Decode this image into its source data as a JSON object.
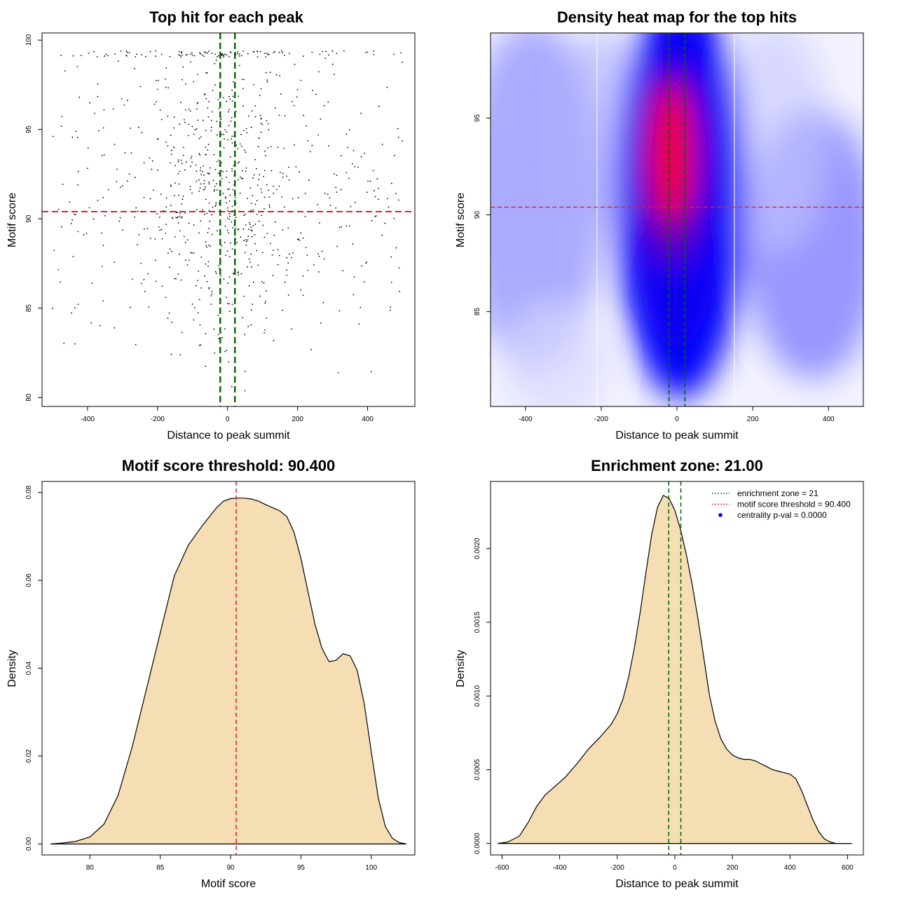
{
  "chart_data": [
    {
      "type": "scatter",
      "title": "Top hit for each peak",
      "xlabel": "Distance to peak summit",
      "ylabel": "Motif score",
      "xlim": [
        -530,
        535
      ],
      "ylim": [
        79.5,
        100.4
      ],
      "xticks": [
        -400,
        -200,
        0,
        200,
        400
      ],
      "yticks": [
        80,
        85,
        90,
        95,
        100
      ],
      "point_count": 900,
      "point_color": "#000000",
      "hlines": [
        {
          "y": 90.4,
          "color": "#dd2222",
          "style": "dashed"
        }
      ],
      "vlines": [
        {
          "x": -21,
          "color": "#006400",
          "style": "dashed"
        },
        {
          "x": 21,
          "color": "#006400",
          "style": "dashed"
        }
      ]
    },
    {
      "type": "heatmap",
      "title": "Density heat map for the top hits",
      "xlabel": "Distance to peak summit",
      "ylabel": "Motif score",
      "xlim": [
        -492,
        492
      ],
      "ylim": [
        80.1,
        99.4
      ],
      "xticks": [
        -400,
        -200,
        0,
        200,
        400
      ],
      "yticks": [
        85,
        90,
        95
      ],
      "colors": [
        "#ffffff",
        "#0000ff",
        "#ff0000"
      ],
      "hlines": [
        {
          "y": 90.4,
          "color": "#dd2222",
          "style": "dashed"
        }
      ],
      "vlines": [
        {
          "x": -21,
          "color": "#006400",
          "style": "dashed"
        },
        {
          "x": 21,
          "color": "#006400",
          "style": "dashed"
        }
      ]
    },
    {
      "type": "area",
      "title": "Motif score threshold: 90.400",
      "xlabel": "Motif score",
      "ylabel": "Density",
      "xlim": [
        76.6,
        103.1
      ],
      "ylim": [
        -0.0025,
        0.0825
      ],
      "xticks": [
        80,
        85,
        90,
        95,
        100
      ],
      "yticks": [
        0.0,
        0.02,
        0.04,
        0.06,
        0.08
      ],
      "ytick_labels": [
        "0.00",
        "0.02",
        "0.04",
        "0.06",
        "0.08"
      ],
      "fill": "#f5deb3",
      "x": [
        77.2,
        78,
        79,
        80,
        81,
        82,
        83,
        84,
        85,
        86,
        87,
        88,
        89,
        89.5,
        90,
        90.5,
        91,
        91.5,
        92,
        92.5,
        93,
        93.5,
        94,
        94.5,
        95,
        95.5,
        96,
        96.5,
        97,
        97.5,
        98,
        98.5,
        99,
        99.5,
        100,
        100.5,
        101,
        101.5,
        102,
        102.5
      ],
      "y": [
        0.0,
        0.0002,
        0.0006,
        0.0016,
        0.0045,
        0.011,
        0.022,
        0.035,
        0.048,
        0.061,
        0.068,
        0.0725,
        0.0765,
        0.078,
        0.0786,
        0.0787,
        0.0787,
        0.0785,
        0.078,
        0.0772,
        0.0765,
        0.0758,
        0.0745,
        0.071,
        0.065,
        0.0575,
        0.05,
        0.0445,
        0.0415,
        0.0418,
        0.0433,
        0.0428,
        0.0395,
        0.032,
        0.021,
        0.0105,
        0.004,
        0.0013,
        0.0003,
        0.0
      ]
    },
    {
      "type": "area",
      "title": "Enrichment zone: 21.00",
      "xlabel": "Distance to peak summit",
      "ylabel": "Density",
      "xlim": [
        -640,
        655
      ],
      "ylim": [
        -7.8e-05,
        0.002455
      ],
      "xticks": [
        -600,
        -400,
        -200,
        0,
        200,
        400,
        600
      ],
      "yticks": [
        0.0,
        0.0005,
        0.001,
        0.0015,
        0.002
      ],
      "ytick_labels": [
        "0.0000",
        "0.0005",
        "0.0010",
        "0.0015",
        "0.0020"
      ],
      "fill": "#f5deb3",
      "vlines": [
        {
          "x": -21,
          "color": "#006400",
          "style": "dashed"
        },
        {
          "x": 21,
          "color": "#006400",
          "style": "dashed"
        }
      ],
      "x": [
        -615,
        -580,
        -540,
        -510,
        -480,
        -450,
        -420,
        -380,
        -340,
        -300,
        -260,
        -220,
        -200,
        -180,
        -160,
        -140,
        -120,
        -100,
        -80,
        -60,
        -40,
        -20,
        0,
        20,
        40,
        60,
        80,
        100,
        120,
        140,
        160,
        180,
        200,
        220,
        240,
        260,
        280,
        300,
        320,
        340,
        360,
        380,
        400,
        420,
        440,
        460,
        480,
        500,
        520,
        540,
        560,
        580,
        615
      ],
      "y": [
        0.0,
        1e-05,
        5e-05,
        0.00014,
        0.00025,
        0.00033,
        0.00038,
        0.00045,
        0.00054,
        0.00064,
        0.00072,
        0.00081,
        0.00088,
        0.00098,
        0.00113,
        0.00133,
        0.00157,
        0.00184,
        0.0021,
        0.00228,
        0.00236,
        0.00234,
        0.00226,
        0.00213,
        0.00196,
        0.00176,
        0.00153,
        0.00127,
        0.00101,
        0.00083,
        0.00071,
        0.00064,
        0.0006,
        0.00058,
        0.00057,
        0.00057,
        0.00056,
        0.00054,
        0.00052,
        0.0005,
        0.00049,
        0.00048,
        0.00047,
        0.00044,
        0.00036,
        0.00026,
        0.00016,
        8e-05,
        3e-05,
        1e-05,
        0.0,
        0.0,
        0.0
      ],
      "legend": [
        {
          "label": "enrichment zone = 21",
          "color": "#006400",
          "kind": "dotted-line"
        },
        {
          "label": "motif score threshold = 90.400",
          "color": "#dd2222",
          "kind": "dotted-line"
        },
        {
          "label": "centrality p-val = 0.0000",
          "color": "#0000ff",
          "kind": "point"
        }
      ]
    }
  ]
}
